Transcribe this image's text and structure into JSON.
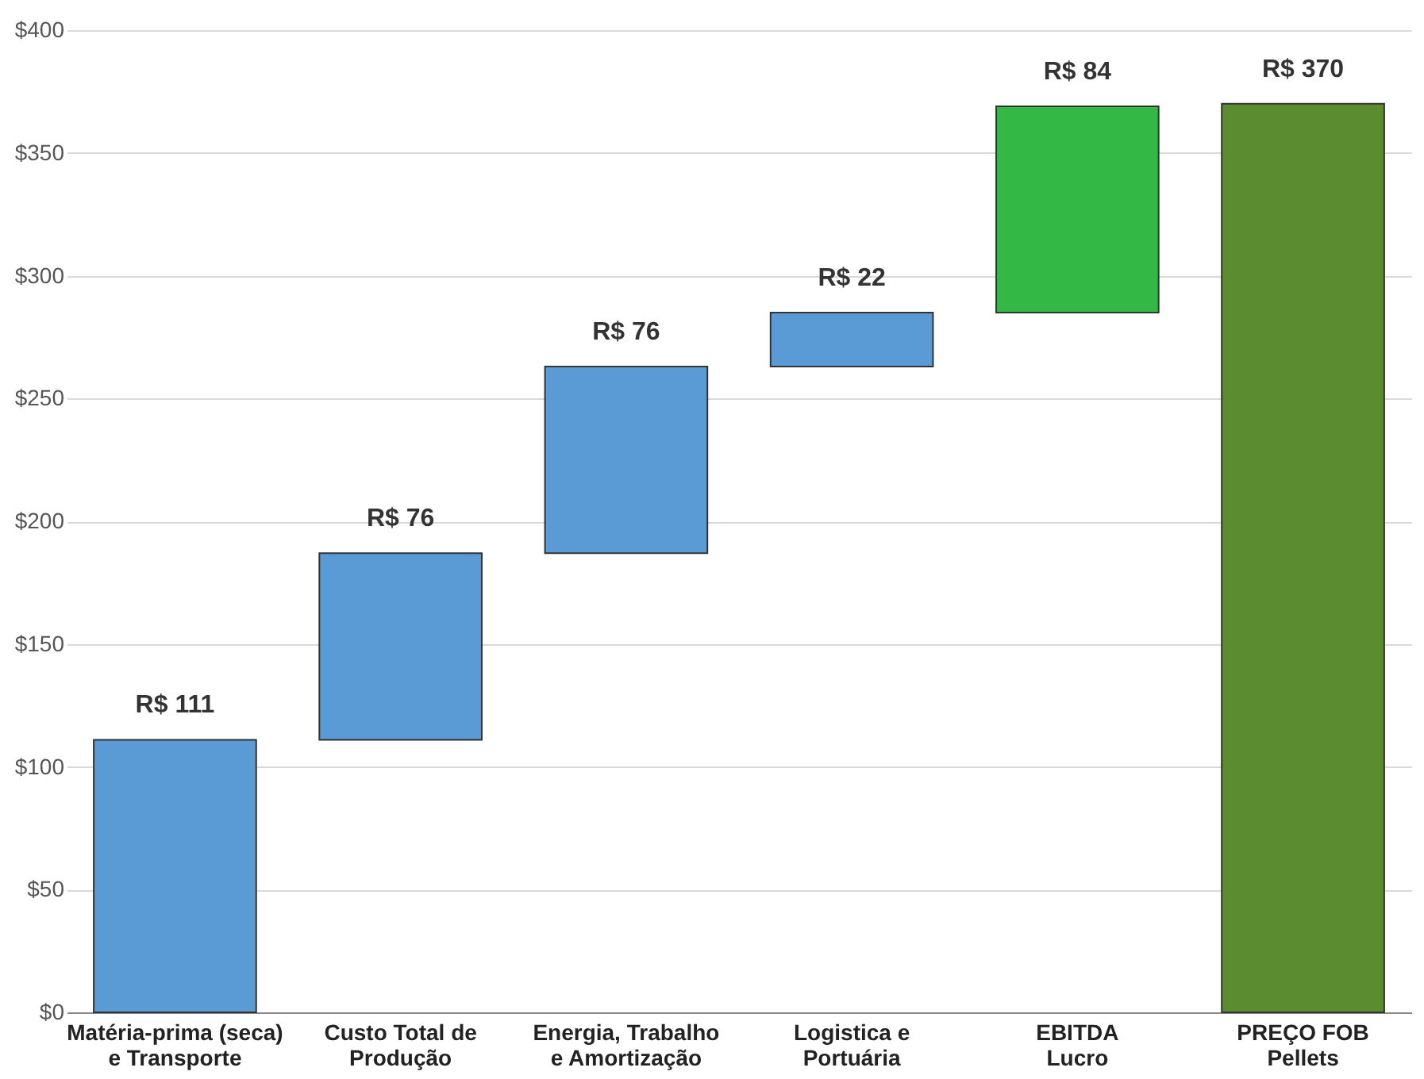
{
  "chart_data": {
    "type": "bar",
    "categories": [
      "Matéria-prima (seca)\ne Transporte",
      "Custo Total de\nProdução",
      "Energia, Trabalho\ne Amortização",
      "Logistica e\nPortuária",
      "EBITDA\nLucro",
      "PREÇO FOB\nPellets"
    ],
    "values": [
      111,
      76,
      76,
      22,
      84,
      370
    ],
    "base": [
      0,
      111,
      187,
      263,
      285,
      0
    ],
    "colors": [
      "#5b9bd5",
      "#5b9bd5",
      "#5b9bd5",
      "#5b9bd5",
      "#33b845",
      "#5b8c30"
    ],
    "value_labels": [
      "R$ 111",
      "R$ 76",
      "R$ 76",
      "R$ 22",
      "R$ 84",
      "R$ 370"
    ],
    "ylim": [
      0,
      400
    ],
    "yticks": [
      {
        "value": 0,
        "label": "$0"
      },
      {
        "value": 50,
        "label": "$50"
      },
      {
        "value": 100,
        "label": "$100"
      },
      {
        "value": 150,
        "label": "$150"
      },
      {
        "value": 200,
        "label": "$200"
      },
      {
        "value": 250,
        "label": "$250"
      },
      {
        "value": 300,
        "label": "$300"
      },
      {
        "value": 350,
        "label": "$350"
      },
      {
        "value": 400,
        "label": "$400"
      }
    ],
    "grid": "y"
  }
}
